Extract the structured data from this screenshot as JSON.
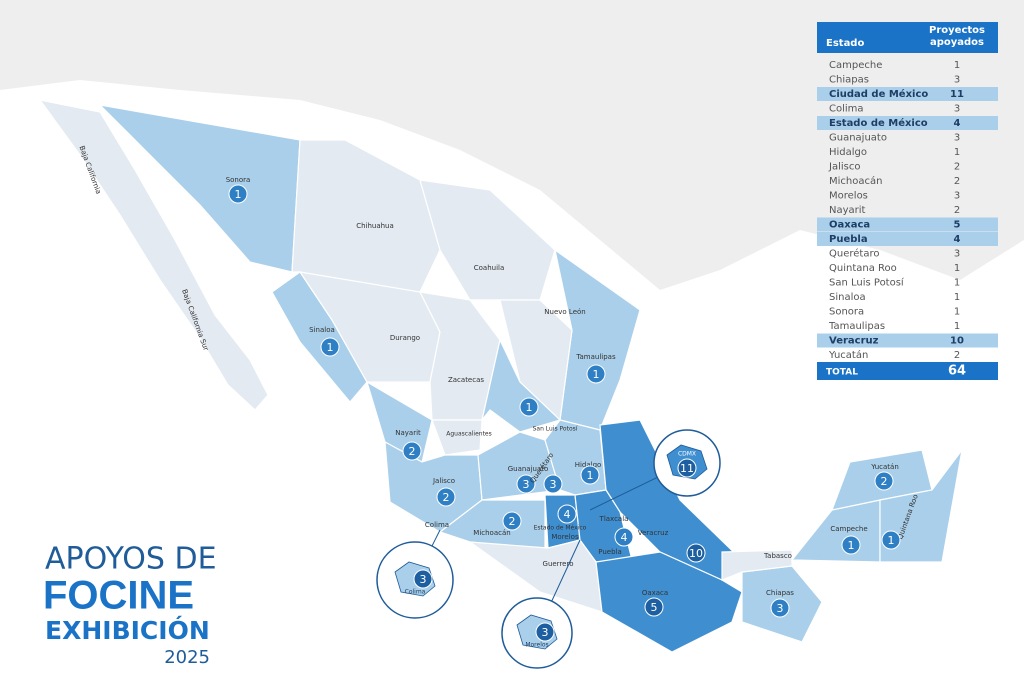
{
  "title": {
    "line1": "APOYOS DE",
    "line2": "FOCINE",
    "line3": "EXHIBICIÓN",
    "line4": "2025"
  },
  "table": {
    "headers": [
      "Estado",
      "Proyectos apoyados"
    ],
    "rows": [
      {
        "estado": "Campeche",
        "proyectos": 1
      },
      {
        "estado": "Chiapas",
        "proyectos": 3
      },
      {
        "estado": "Ciudad de México",
        "proyectos": 11,
        "highlight": true
      },
      {
        "estado": "Colima",
        "proyectos": 3
      },
      {
        "estado": "Estado de México",
        "proyectos": 4,
        "highlight": true
      },
      {
        "estado": "Guanajuato",
        "proyectos": 3
      },
      {
        "estado": "Hidalgo",
        "proyectos": 1
      },
      {
        "estado": "Jalisco",
        "proyectos": 2
      },
      {
        "estado": "Michoacán",
        "proyectos": 2
      },
      {
        "estado": "Morelos",
        "proyectos": 3
      },
      {
        "estado": "Nayarit",
        "proyectos": 2
      },
      {
        "estado": "Oaxaca",
        "proyectos": 5,
        "highlight": true
      },
      {
        "estado": "Puebla",
        "proyectos": 4,
        "highlight": true
      },
      {
        "estado": "Querétaro",
        "proyectos": 3
      },
      {
        "estado": "Quintana Roo",
        "proyectos": 1
      },
      {
        "estado": "San Luis Potosí",
        "proyectos": 1
      },
      {
        "estado": "Sinaloa",
        "proyectos": 1
      },
      {
        "estado": "Sonora",
        "proyectos": 1
      },
      {
        "estado": "Tamaulipas",
        "proyectos": 1
      },
      {
        "estado": "Veracruz",
        "proyectos": 10,
        "highlight": true
      },
      {
        "estado": "Yucatán",
        "proyectos": 2
      }
    ],
    "total": {
      "label": "TOTAL",
      "value": 64
    }
  },
  "map": {
    "labels": [
      {
        "name": "Baja California"
      },
      {
        "name": "Baja California Sur"
      },
      {
        "name": "Sonora",
        "count": 1
      },
      {
        "name": "Chihuahua"
      },
      {
        "name": "Coahuila"
      },
      {
        "name": "Nuevo León"
      },
      {
        "name": "Sinaloa",
        "count": 1
      },
      {
        "name": "Durango"
      },
      {
        "name": "Tamaulipas",
        "count": 1
      },
      {
        "name": "Zacatecas"
      },
      {
        "name": "San Luis Potosí",
        "count": 1
      },
      {
        "name": "Nayarit",
        "count": 2
      },
      {
        "name": "Aguascalientes"
      },
      {
        "name": "Guanajuato",
        "count": 3
      },
      {
        "name": "Querétaro",
        "count": 3
      },
      {
        "name": "Hidalgo",
        "count": 1
      },
      {
        "name": "Jalisco",
        "count": 2
      },
      {
        "name": "Colima"
      },
      {
        "name": "Michoacán",
        "count": 2
      },
      {
        "name": "Estado de México",
        "count": 4
      },
      {
        "name": "Morelos"
      },
      {
        "name": "Tlaxcala"
      },
      {
        "name": "Puebla",
        "count": 4
      },
      {
        "name": "Veracruz",
        "count": 10
      },
      {
        "name": "Guerrero"
      },
      {
        "name": "Oaxaca",
        "count": 5
      },
      {
        "name": "Tabasco"
      },
      {
        "name": "Chiapas",
        "count": 3
      },
      {
        "name": "Campeche",
        "count": 1
      },
      {
        "name": "Yucatán",
        "count": 2
      },
      {
        "name": "Quintana Roo",
        "count": 1
      }
    ],
    "insets": [
      {
        "name": "CDMX",
        "count": 11
      },
      {
        "name": "Colima",
        "count": 3
      },
      {
        "name": "Morelos",
        "count": 3
      }
    ]
  }
}
